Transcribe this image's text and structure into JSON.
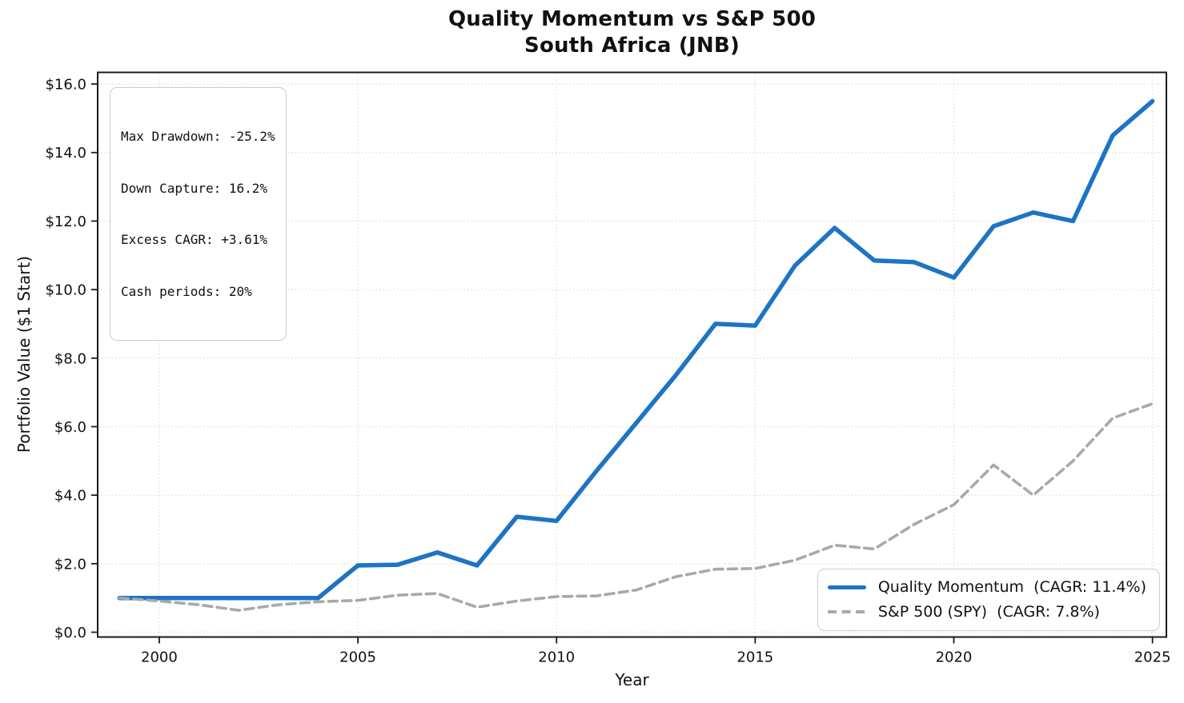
{
  "figure": {
    "title_line1": "Quality Momentum vs S&P 500",
    "title_line2": "South Africa (JNB)"
  },
  "stats_box": {
    "lines": [
      "Max Drawdown: -25.2%",
      "Down Capture: 16.2%",
      "Excess CAGR: +3.61%",
      "Cash periods: 20%"
    ]
  },
  "legend": {
    "items": [
      {
        "label": "Quality Momentum  (CAGR: 11.4%)",
        "color": "#1d74c4",
        "style": "solid"
      },
      {
        "label": "S&P 500 (SPY)  (CAGR: 7.8%)",
        "color": "#a9a9a9",
        "style": "dashed"
      }
    ]
  },
  "chart_data": {
    "type": "line",
    "title": "Quality Momentum vs S&P 500",
    "subtitle": "South Africa (JNB)",
    "xlabel": "Year",
    "ylabel": "Portfolio Value ($1 Start)",
    "x": [
      1999,
      2000,
      2001,
      2002,
      2003,
      2004,
      2005,
      2006,
      2007,
      2008,
      2009,
      2010,
      2011,
      2012,
      2013,
      2014,
      2015,
      2016,
      2017,
      2018,
      2019,
      2020,
      2021,
      2022,
      2023,
      2024,
      2025
    ],
    "series": [
      {
        "name": "Quality Momentum (CAGR: 11.4%)",
        "color": "#1d74c4",
        "line_style": "solid",
        "line_width": 5.5,
        "values": [
          1.0,
          1.0,
          1.0,
          1.0,
          1.0,
          1.0,
          1.95,
          1.97,
          2.33,
          1.95,
          3.37,
          3.25,
          4.7,
          6.1,
          7.5,
          9.0,
          8.95,
          10.7,
          11.8,
          10.85,
          10.8,
          10.35,
          11.85,
          12.25,
          12.0,
          14.5,
          15.5
        ]
      },
      {
        "name": "S&P 500 (SPY) (CAGR: 7.8%)",
        "color": "#a9a9a9",
        "line_style": "dashed",
        "line_width": 3.6,
        "values": [
          1.0,
          0.91,
          0.8,
          0.64,
          0.8,
          0.89,
          0.93,
          1.08,
          1.13,
          0.73,
          0.91,
          1.04,
          1.06,
          1.23,
          1.62,
          1.84,
          1.86,
          2.1,
          2.54,
          2.43,
          3.15,
          3.72,
          4.88,
          4.0,
          5.0,
          6.25,
          6.67
        ]
      }
    ],
    "xticks": {
      "values": [
        2000,
        2005,
        2010,
        2015,
        2020,
        2025
      ],
      "labels": [
        "2000",
        "2005",
        "2010",
        "2015",
        "2020",
        "2025"
      ]
    },
    "yticks": {
      "values": [
        0,
        2,
        4,
        6,
        8,
        10,
        12,
        14,
        16
      ],
      "labels": [
        "$0.0",
        "$2.0",
        "$4.0",
        "$6.0",
        "$8.0",
        "$10.0",
        "$12.0",
        "$14.0",
        "$16.0"
      ]
    },
    "xlim": [
      1998.45,
      2025.35
    ],
    "ylim": [
      -0.14,
      16.34
    ],
    "grid": "dotted",
    "legend_position": "lower right"
  }
}
